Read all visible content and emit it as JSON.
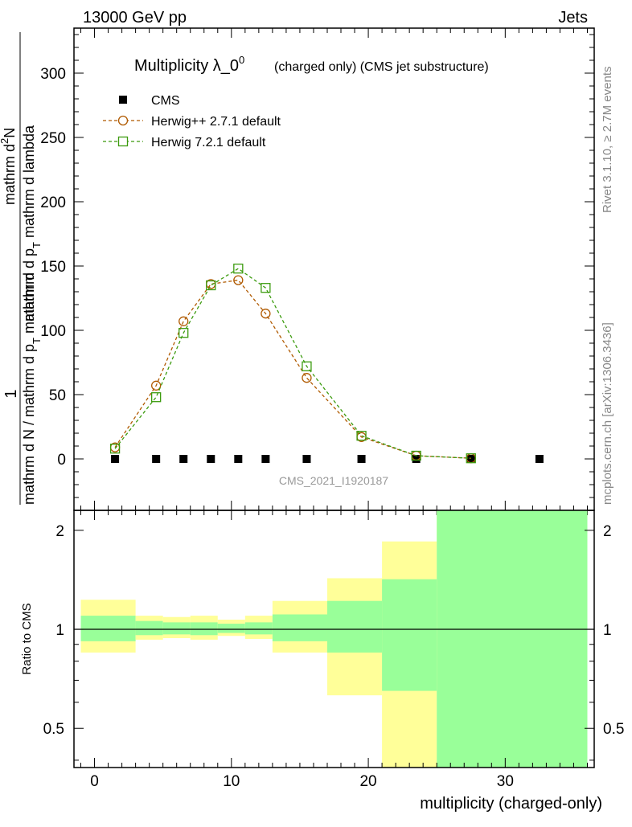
{
  "header": {
    "left": "13000 GeV pp",
    "right": "Jets"
  },
  "side_labels": {
    "rivet": "Rivet 3.1.10, ≥ 2.7M events",
    "mcplots": "mcplots.cern.ch [arXiv:1306.3436]"
  },
  "watermark": "CMS_2021_I1920187",
  "main_plot": {
    "title_main": "Multiplicity λ_0",
    "title_sup": "0",
    "title_small": "(charged only) (CMS jet substructure)",
    "ylabel_num_1": "1",
    "ylabel_den_1": "mathrm d N / mathrm d p",
    "ylabel_den_1_sub": "T",
    "ylabel_num_2": "mathrm d",
    "ylabel_num_2_sup": "2",
    "ylabel_num_2b": "N",
    "ylabel_den_2": "mathrm d p",
    "ylabel_den_2_sub": "T",
    "ylabel_den_2b": " mathrm d lambda",
    "y_ticks": [
      "0",
      "50",
      "100",
      "150",
      "200",
      "250",
      "300"
    ],
    "ylim": [
      -40,
      335
    ]
  },
  "ratio_plot": {
    "ylabel": "Ratio to CMS",
    "y_ticks": [
      "0.5",
      "1",
      "2"
    ],
    "ylim": [
      0.38,
      2.3
    ]
  },
  "x_axis": {
    "label": "multiplicity (charged-only)",
    "ticks": [
      "0",
      "10",
      "20",
      "30"
    ],
    "xlim": [
      -1.5,
      36.5
    ]
  },
  "colors": {
    "herwig_pp": "#b05a00",
    "herwig7": "#3c9b0f",
    "band_inner": "#99ff99",
    "band_outer": "#ffff99"
  },
  "chart_data": {
    "type": "scatter",
    "series": [
      {
        "name": "CMS",
        "x": [
          1.5,
          4.5,
          6.5,
          8.5,
          10.5,
          12.5,
          15.5,
          19.5,
          23.5,
          27.5,
          32.5
        ],
        "values": [
          0,
          0,
          0,
          0,
          0,
          0,
          0,
          0,
          0,
          0,
          0
        ]
      },
      {
        "name": "Herwig++ 2.7.1 default",
        "x": [
          1.5,
          4.5,
          6.5,
          8.5,
          10.5,
          12.5,
          15.5,
          19.5,
          23.5,
          27.5
        ],
        "values": [
          9,
          57,
          107,
          136,
          139,
          113,
          63,
          17,
          2.5,
          0.5
        ]
      },
      {
        "name": "Herwig 7.2.1 default",
        "x": [
          1.5,
          4.5,
          6.5,
          8.5,
          10.5,
          12.5,
          15.5,
          19.5,
          23.5,
          27.5
        ],
        "values": [
          8,
          48,
          98,
          135,
          148,
          133,
          72,
          18,
          2.5,
          0.5
        ]
      }
    ],
    "ratio_bands": [
      {
        "xmin": -1,
        "xmax": 3,
        "inner": [
          0.92,
          1.1
        ],
        "outer": [
          0.85,
          1.23
        ]
      },
      {
        "xmin": 3,
        "xmax": 5,
        "inner": [
          0.96,
          1.06
        ],
        "outer": [
          0.93,
          1.1
        ]
      },
      {
        "xmin": 5,
        "xmax": 7,
        "inner": [
          0.965,
          1.05
        ],
        "outer": [
          0.94,
          1.09
        ]
      },
      {
        "xmin": 7,
        "xmax": 9,
        "inner": [
          0.96,
          1.05
        ],
        "outer": [
          0.93,
          1.1
        ]
      },
      {
        "xmin": 9,
        "xmax": 11,
        "inner": [
          0.975,
          1.04
        ],
        "outer": [
          0.955,
          1.07
        ]
      },
      {
        "xmin": 11,
        "xmax": 13,
        "inner": [
          0.965,
          1.05
        ],
        "outer": [
          0.935,
          1.1
        ]
      },
      {
        "xmin": 13,
        "xmax": 17,
        "inner": [
          0.92,
          1.11
        ],
        "outer": [
          0.85,
          1.22
        ]
      },
      {
        "xmin": 17,
        "xmax": 21,
        "inner": [
          0.85,
          1.22
        ],
        "outer": [
          0.63,
          1.43
        ]
      },
      {
        "xmin": 21,
        "xmax": 25,
        "inner": [
          0.65,
          1.42
        ],
        "outer": [
          0.38,
          1.85
        ]
      },
      {
        "xmin": 25,
        "xmax": 36,
        "inner": [
          0.38,
          2.3
        ],
        "outer": [
          0.38,
          2.3
        ]
      }
    ]
  }
}
